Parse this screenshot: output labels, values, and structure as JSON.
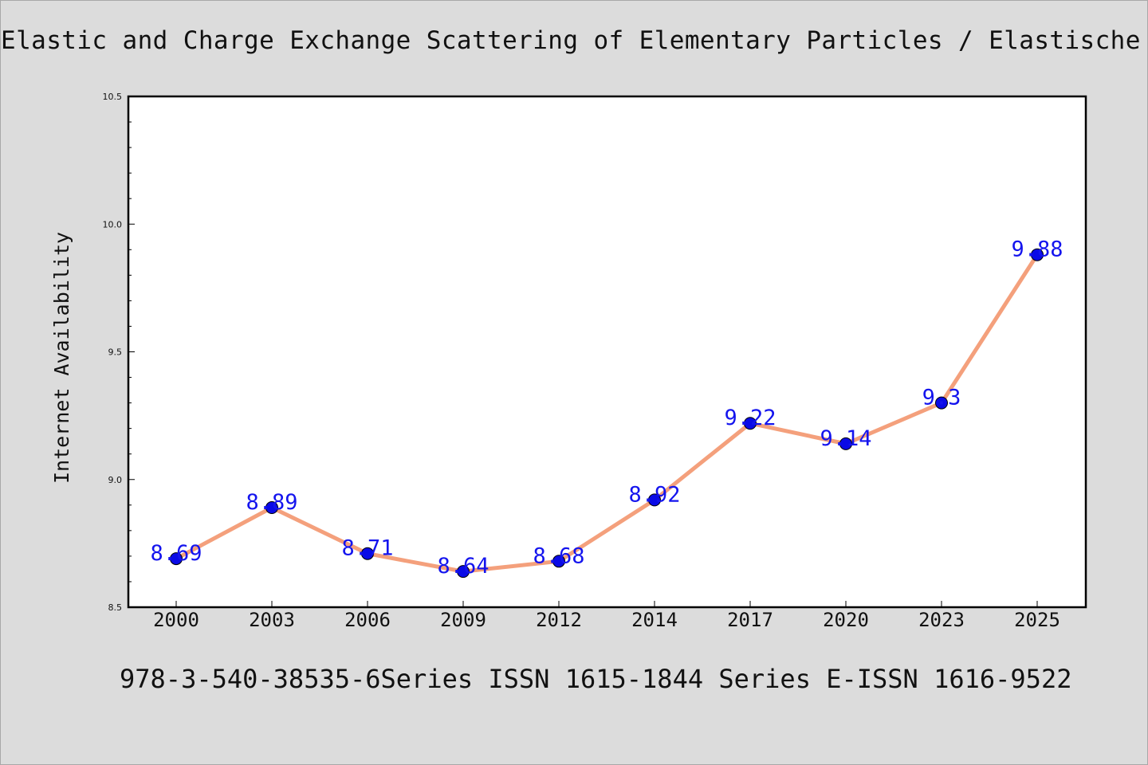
{
  "chart_data": {
    "type": "line",
    "title": "Elastic and Charge Exchange Scattering of Elementary Particles / Elastische und",
    "xlabel": "",
    "ylabel": "Internet Availability",
    "categories": [
      "2000",
      "2003",
      "2006",
      "2009",
      "2012",
      "2014",
      "2017",
      "2020",
      "2023",
      "2025"
    ],
    "series": [
      {
        "values": [
          8.69,
          8.89,
          8.71,
          8.64,
          8.68,
          8.92,
          9.22,
          9.14,
          9.3,
          9.88
        ],
        "labels": [
          "8.69",
          "8.89",
          "8.71",
          "8.64",
          "8.68",
          "8.92",
          "9.22",
          "9.14",
          "9.3",
          "9.88"
        ]
      }
    ],
    "ylim": [
      8.5,
      10.5
    ],
    "yticks": [
      "8.5",
      "9.0",
      "9.5",
      "10.0",
      "10.5"
    ],
    "grid": false,
    "legend": "none",
    "colors": {
      "line": "#f4a07c",
      "marker": "#0a0ae6",
      "label": "#1414ee"
    }
  },
  "footer": {
    "text": "978-3-540-38535-6Series ISSN 1615-1844 Series E-ISSN 1616-9522"
  }
}
